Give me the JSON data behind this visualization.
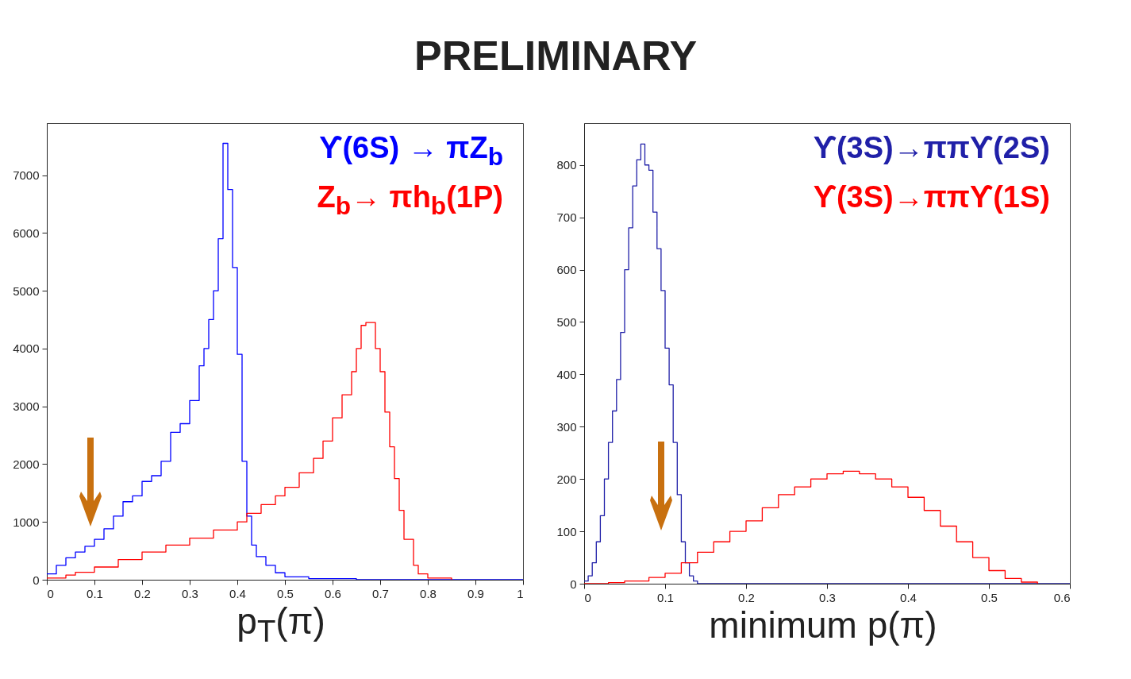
{
  "chart_data": [
    {
      "type": "step",
      "title": "PRELIMINARY",
      "xlabel": "p$_{T}$(π)",
      "legend": "top right",
      "xlim": [
        0,
        1
      ],
      "ylim": [
        0,
        7900
      ],
      "xticks": [
        0,
        0.1,
        0.2,
        0.3,
        0.4,
        0.5,
        0.6,
        0.7,
        0.8,
        0.9,
        1
      ],
      "yticks": [
        0,
        1000,
        2000,
        3000,
        4000,
        5000,
        6000,
        7000
      ],
      "series": [
        {
          "name": "ϒ(6S) → πZ$_{b}$",
          "color": "#0000ff",
          "x": [
            0,
            0.02,
            0.04,
            0.06,
            0.08,
            0.1,
            0.12,
            0.14,
            0.16,
            0.18,
            0.2,
            0.22,
            0.24,
            0.26,
            0.28,
            0.3,
            0.32,
            0.33,
            0.34,
            0.35,
            0.36,
            0.37,
            0.38,
            0.39,
            0.4,
            0.41,
            0.42,
            0.43,
            0.44,
            0.46,
            0.48,
            0.5,
            0.55,
            0.65,
            1
          ],
          "values": [
            100,
            250,
            380,
            480,
            580,
            700,
            880,
            1100,
            1350,
            1450,
            1700,
            1800,
            2050,
            2550,
            2700,
            3100,
            3700,
            4000,
            4500,
            5000,
            5900,
            7550,
            6750,
            5400,
            3900,
            2050,
            1100,
            600,
            400,
            250,
            120,
            50,
            20,
            0,
            0
          ]
        },
        {
          "name": "Z$_{b}$→ πh$_{b}$(1P)",
          "color": "#ff0000",
          "x": [
            0,
            0.04,
            0.06,
            0.1,
            0.15,
            0.2,
            0.25,
            0.3,
            0.35,
            0.4,
            0.42,
            0.45,
            0.48,
            0.5,
            0.53,
            0.56,
            0.58,
            0.6,
            0.62,
            0.64,
            0.65,
            0.66,
            0.67,
            0.68,
            0.69,
            0.7,
            0.71,
            0.72,
            0.73,
            0.74,
            0.75,
            0.77,
            0.78,
            0.8,
            0.85
          ],
          "values": [
            30,
            80,
            130,
            220,
            350,
            480,
            600,
            720,
            860,
            1000,
            1150,
            1300,
            1450,
            1600,
            1850,
            2100,
            2400,
            2800,
            3200,
            3600,
            4000,
            4400,
            4450,
            4450,
            4000,
            3600,
            2900,
            2300,
            1750,
            1200,
            700,
            250,
            100,
            30,
            0
          ]
        }
      ]
    },
    {
      "type": "step",
      "xlabel": "minimum p(π)",
      "legend": "top right",
      "xlim": [
        0,
        0.6
      ],
      "ylim": [
        0,
        880
      ],
      "xticks": [
        0,
        0.1,
        0.2,
        0.3,
        0.4,
        0.5,
        0.6
      ],
      "yticks": [
        0,
        100,
        200,
        300,
        400,
        500,
        600,
        700,
        800
      ],
      "series": [
        {
          "name": "ϒ(3S)→ππϒ(2S)",
          "color": "#2020a8",
          "x": [
            0,
            0.005,
            0.01,
            0.015,
            0.02,
            0.025,
            0.03,
            0.035,
            0.04,
            0.045,
            0.05,
            0.055,
            0.06,
            0.065,
            0.07,
            0.075,
            0.08,
            0.085,
            0.09,
            0.095,
            0.1,
            0.105,
            0.11,
            0.115,
            0.12,
            0.125,
            0.13,
            0.135,
            0.14,
            0.6
          ],
          "values": [
            5,
            15,
            40,
            80,
            130,
            200,
            270,
            330,
            390,
            480,
            600,
            680,
            760,
            810,
            840,
            800,
            790,
            710,
            640,
            560,
            450,
            380,
            270,
            170,
            80,
            40,
            15,
            5,
            0,
            0
          ]
        },
        {
          "name": "ϒ(3S)→ππϒ(1S)",
          "color": "#ff0000",
          "x": [
            0,
            0.03,
            0.05,
            0.08,
            0.1,
            0.12,
            0.14,
            0.16,
            0.18,
            0.2,
            0.22,
            0.24,
            0.26,
            0.28,
            0.3,
            0.32,
            0.34,
            0.36,
            0.38,
            0.4,
            0.42,
            0.44,
            0.46,
            0.48,
            0.5,
            0.52,
            0.54,
            0.56
          ],
          "values": [
            0,
            2,
            5,
            12,
            20,
            40,
            60,
            80,
            100,
            120,
            145,
            170,
            185,
            200,
            210,
            215,
            210,
            200,
            185,
            165,
            140,
            110,
            80,
            50,
            25,
            10,
            3,
            0
          ]
        }
      ]
    }
  ]
}
